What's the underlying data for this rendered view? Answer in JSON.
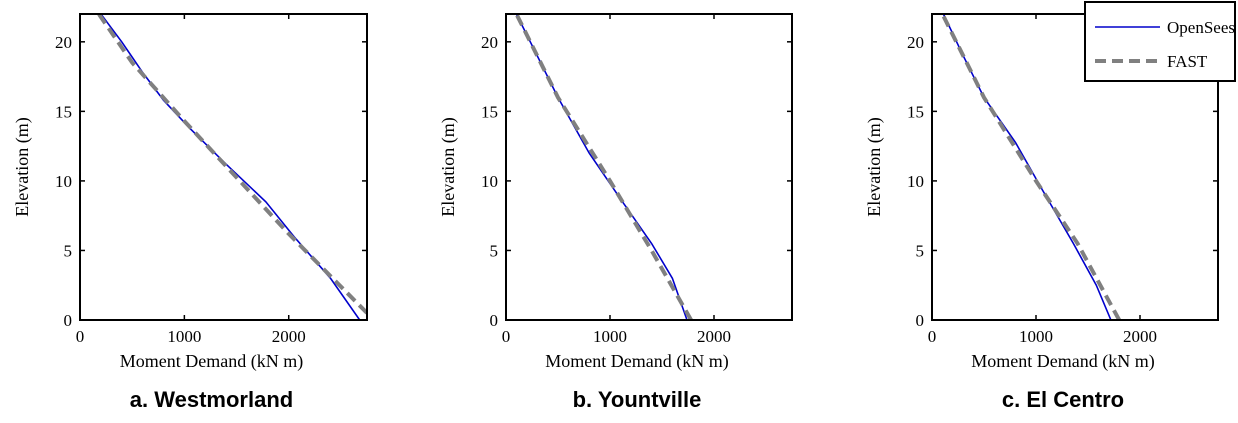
{
  "chart_data": [
    {
      "type": "line",
      "caption": "a. Westmorland",
      "xlabel": "Moment Demand (kN m)",
      "ylabel": "Elevation (m)",
      "xlim": [
        0,
        2750
      ],
      "ylim": [
        0,
        22
      ],
      "xticks": [
        0,
        1000,
        2000
      ],
      "yticks": [
        0,
        5,
        10,
        15,
        20
      ],
      "series": [
        {
          "name": "OpenSees",
          "color": "#0000cc",
          "style": "solid",
          "x": [
            2680,
            2400,
            2050,
            1780,
            1400,
            1050,
            800,
            600,
            400,
            200
          ],
          "y": [
            0,
            3,
            6,
            8.5,
            11.2,
            13.8,
            15.8,
            17.8,
            20,
            22
          ]
        },
        {
          "name": "FAST",
          "color": "#808080",
          "style": "dashed",
          "x": [
            2750,
            2000,
            1000,
            500,
            180
          ],
          "y": [
            0.5,
            6.2,
            14.3,
            18.5,
            22
          ]
        }
      ]
    },
    {
      "type": "line",
      "caption": "b. Yountville",
      "xlabel": "Moment Demand (kN m)",
      "ylabel": "Elevation (m)",
      "xlim": [
        0,
        2750
      ],
      "ylim": [
        0,
        22
      ],
      "xticks": [
        0,
        1000,
        2000
      ],
      "yticks": [
        0,
        5,
        10,
        15,
        20
      ],
      "series": [
        {
          "name": "OpenSees",
          "color": "#0000cc",
          "style": "solid",
          "x": [
            1740,
            1600,
            1400,
            1120,
            800,
            500,
            300,
            100
          ],
          "y": [
            0,
            3,
            5.5,
            8.5,
            12,
            16,
            19,
            22
          ]
        },
        {
          "name": "FAST",
          "color": "#808080",
          "style": "dashed",
          "x": [
            1780,
            1400,
            1000,
            500,
            100
          ],
          "y": [
            0,
            5,
            10,
            16,
            22
          ]
        }
      ]
    },
    {
      "type": "line",
      "caption": "c. El Centro",
      "xlabel": "Moment Demand (kN m)",
      "ylabel": "Elevation (m)",
      "xlim": [
        0,
        2750
      ],
      "ylim": [
        0,
        22
      ],
      "xticks": [
        0,
        1000,
        2000
      ],
      "yticks": [
        0,
        5,
        10,
        15,
        20
      ],
      "legend": {
        "position": "top-right",
        "entries": [
          "OpenSees",
          "FAST"
        ]
      },
      "series": [
        {
          "name": "OpenSees",
          "color": "#0000cc",
          "style": "solid",
          "x": [
            1720,
            1580,
            1360,
            1050,
            800,
            500,
            300,
            110
          ],
          "y": [
            0,
            2.5,
            5.5,
            9.5,
            12.8,
            16,
            19,
            22
          ]
        },
        {
          "name": "FAST",
          "color": "#808080",
          "style": "dashed",
          "x": [
            1800,
            1400,
            1000,
            500,
            100
          ],
          "y": [
            0,
            5.5,
            10,
            16,
            22
          ]
        }
      ]
    }
  ]
}
